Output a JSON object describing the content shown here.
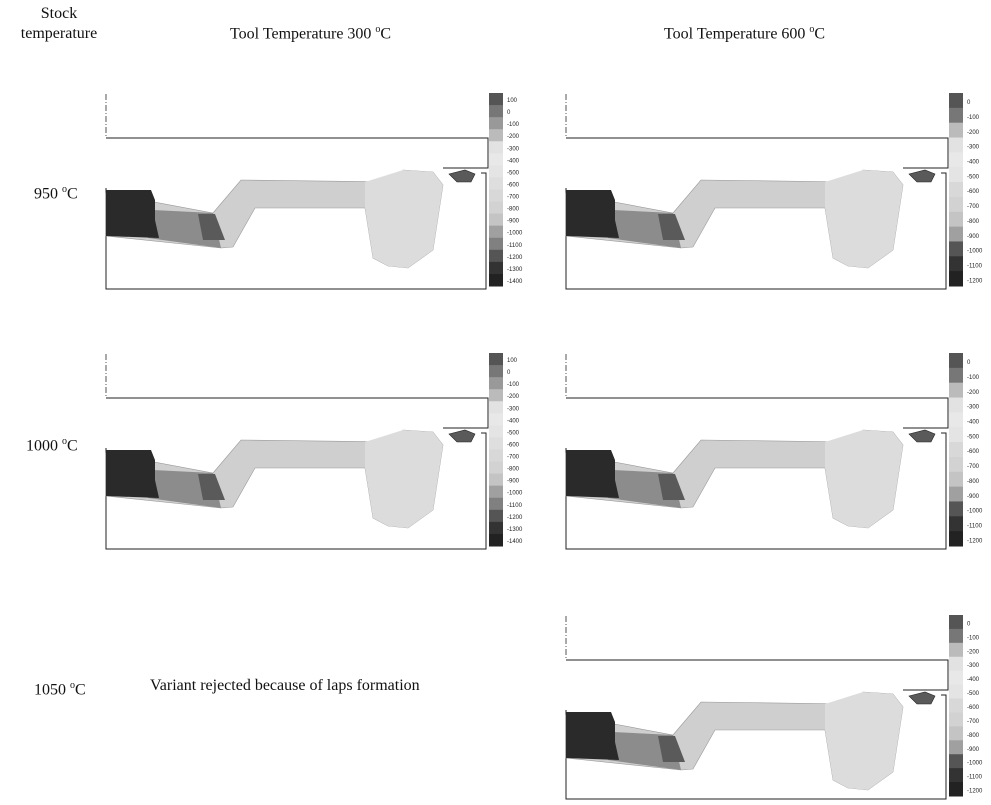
{
  "headers": {
    "stock": "Stock temperature",
    "col1": "Tool Temperature 300",
    "col2": "Tool Temperature 600",
    "deg": "o",
    "unit": "C"
  },
  "rows": [
    {
      "label": "950",
      "unit": "C",
      "deg": "o"
    },
    {
      "label": "1000",
      "unit": "C",
      "deg": "o"
    },
    {
      "label": "1050",
      "unit": "C",
      "deg": "o"
    }
  ],
  "rejected_text": "Variant rejected because of laps formation",
  "scale_300": [
    "100",
    "0",
    "-100",
    "-200",
    "-300",
    "-400",
    "-500",
    "-600",
    "-700",
    "-800",
    "-900",
    "-1000",
    "-1100",
    "-1200",
    "-1300",
    "-1400"
  ],
  "scale_600": [
    "0",
    "-100",
    "-200",
    "-300",
    "-400",
    "-500",
    "-600",
    "-700",
    "-800",
    "-900",
    "-1000",
    "-1100",
    "-1200"
  ],
  "colors": {
    "dark": "#2a2a2a",
    "mid_dark": "#5a5a5a",
    "mid": "#8c8c8c",
    "light": "#cfcfcf",
    "lighter": "#dcdcdc"
  }
}
